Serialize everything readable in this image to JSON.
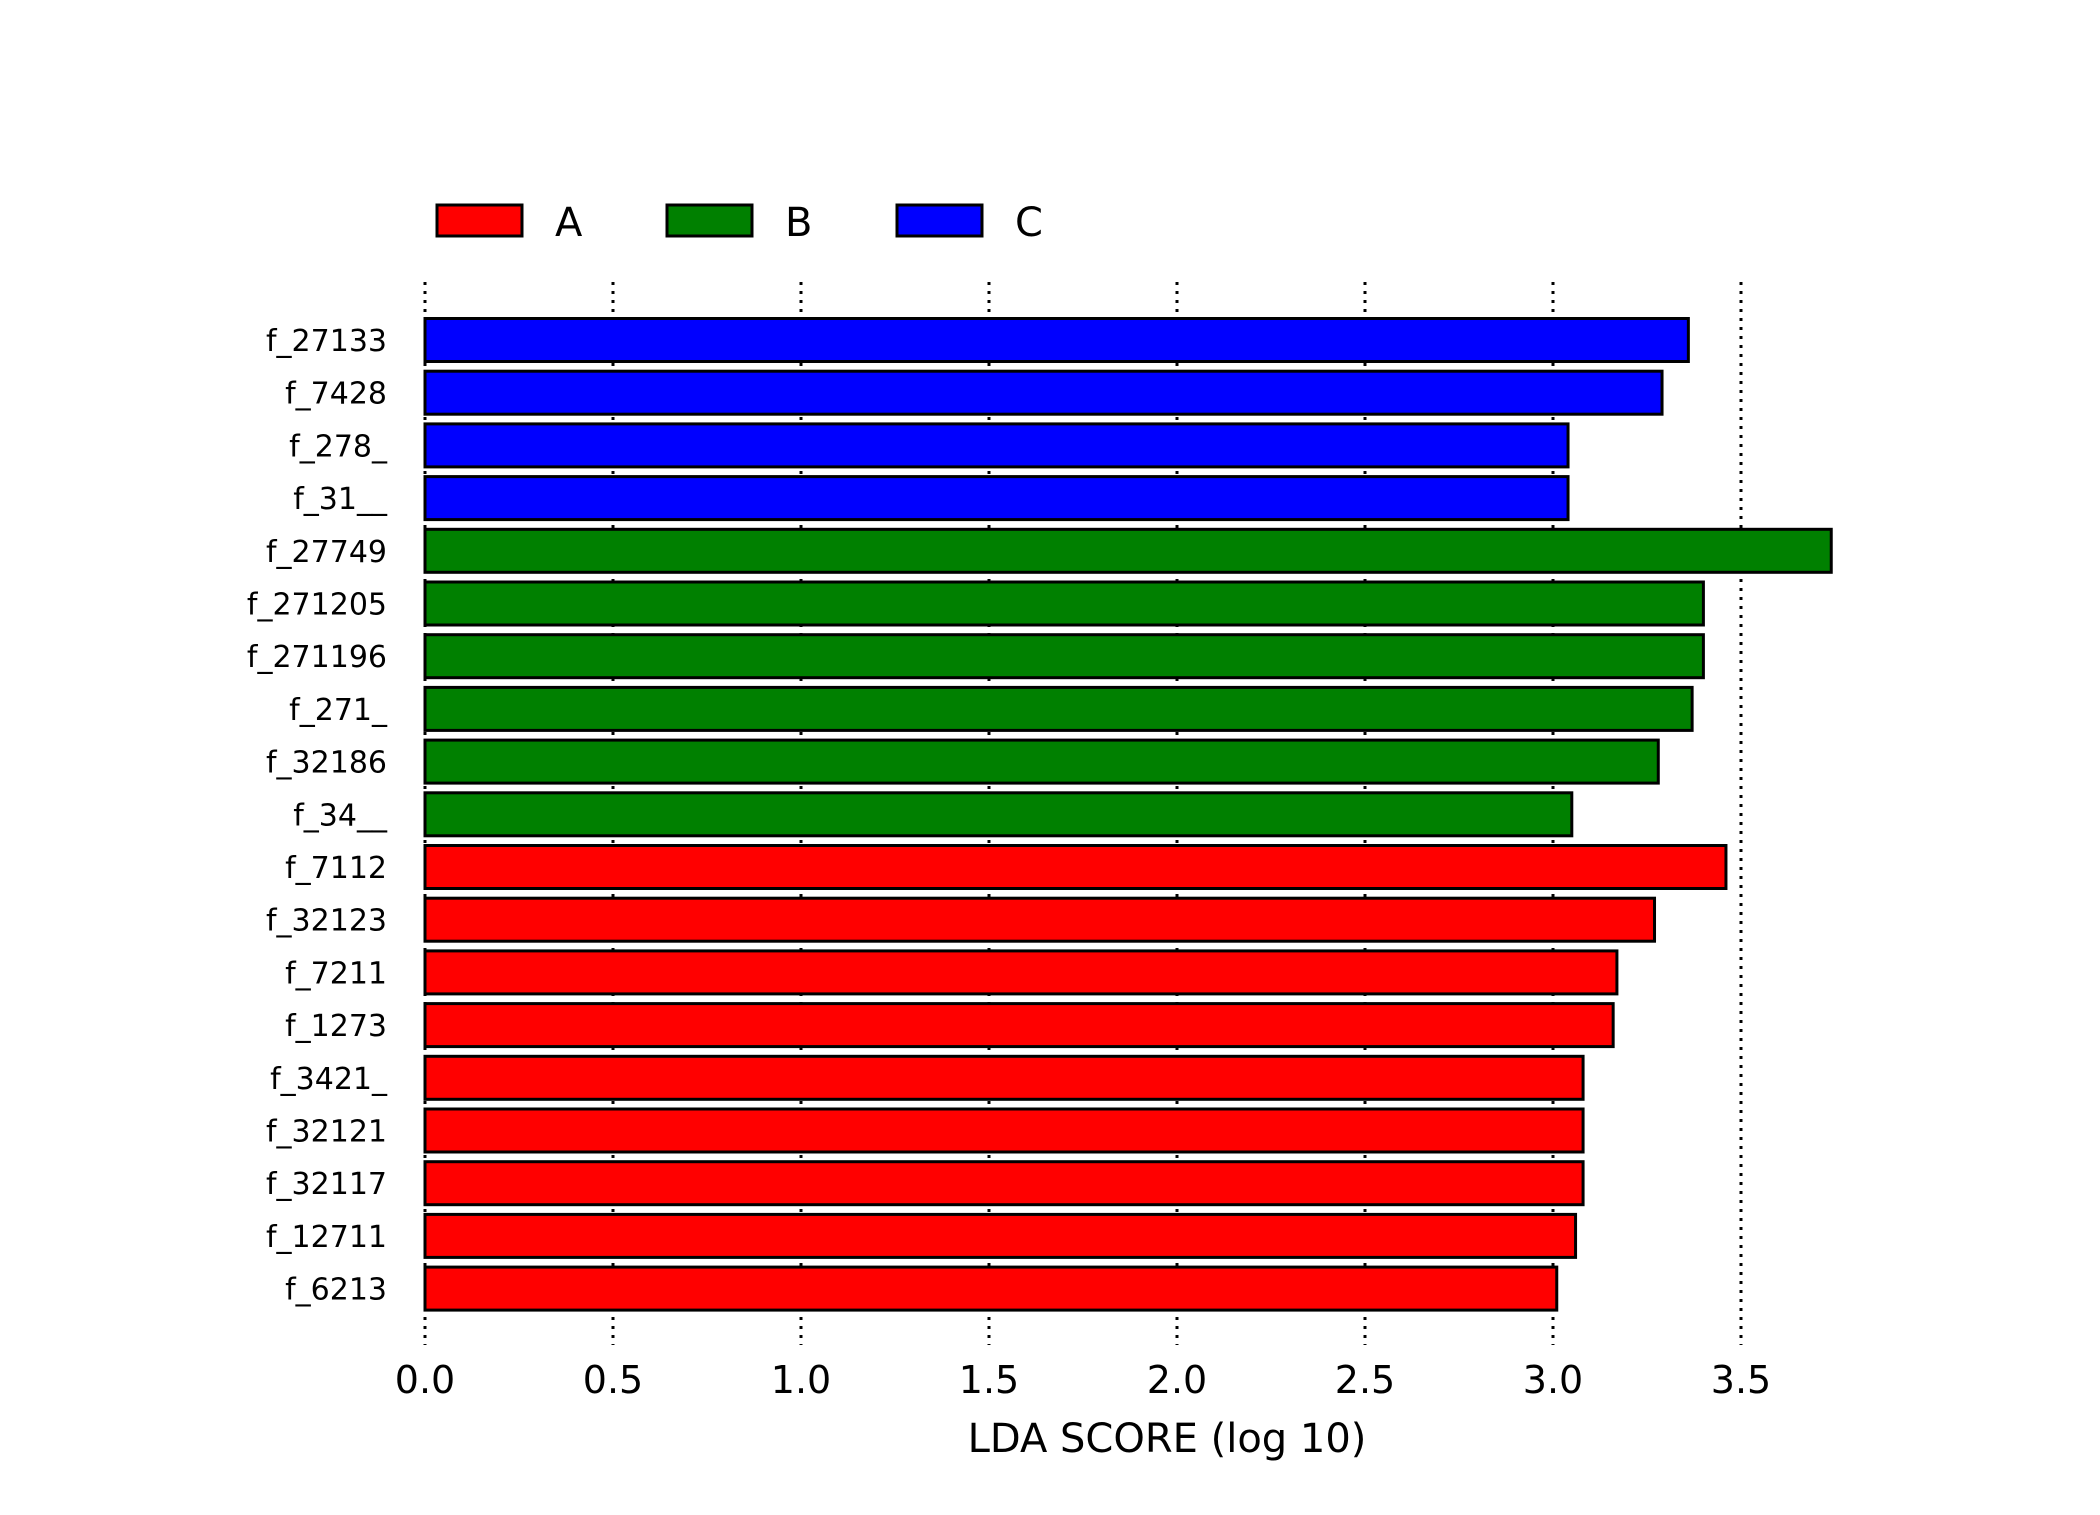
{
  "chart_data": {
    "type": "bar",
    "orientation": "horizontal",
    "title": "",
    "xlabel": "LDA SCORE (log 10)",
    "ylabel": "",
    "xlim": [
      0,
      3.75
    ],
    "xticks": [
      "0.0",
      "0.5",
      "1.0",
      "1.5",
      "2.0",
      "2.5",
      "3.0",
      "3.5"
    ],
    "grid": "vertical dotted",
    "legend_placement": "top",
    "legend": [
      {
        "name": "A",
        "color": "#ff0000"
      },
      {
        "name": "B",
        "color": "#008000"
      },
      {
        "name": "C",
        "color": "#0000ff"
      }
    ],
    "bars": [
      {
        "label": "f_27133",
        "value": 3.36,
        "group": "C"
      },
      {
        "label": "f_7428",
        "value": 3.29,
        "group": "C"
      },
      {
        "label": "f_278_",
        "value": 3.04,
        "group": "C"
      },
      {
        "label": "f_31__",
        "value": 3.04,
        "group": "C"
      },
      {
        "label": "f_27749",
        "value": 3.74,
        "group": "B"
      },
      {
        "label": "f_271205",
        "value": 3.4,
        "group": "B"
      },
      {
        "label": "f_271196",
        "value": 3.4,
        "group": "B"
      },
      {
        "label": "f_271_",
        "value": 3.37,
        "group": "B"
      },
      {
        "label": "f_32186",
        "value": 3.28,
        "group": "B"
      },
      {
        "label": "f_34__",
        "value": 3.05,
        "group": "B"
      },
      {
        "label": "f_7112",
        "value": 3.46,
        "group": "A"
      },
      {
        "label": "f_32123",
        "value": 3.27,
        "group": "A"
      },
      {
        "label": "f_7211",
        "value": 3.17,
        "group": "A"
      },
      {
        "label": "f_1273",
        "value": 3.16,
        "group": "A"
      },
      {
        "label": "f_3421_",
        "value": 3.08,
        "group": "A"
      },
      {
        "label": "f_32121",
        "value": 3.08,
        "group": "A"
      },
      {
        "label": "f_32117",
        "value": 3.08,
        "group": "A"
      },
      {
        "label": "f_12711",
        "value": 3.06,
        "group": "A"
      },
      {
        "label": "f_6213",
        "value": 3.01,
        "group": "A"
      }
    ]
  }
}
